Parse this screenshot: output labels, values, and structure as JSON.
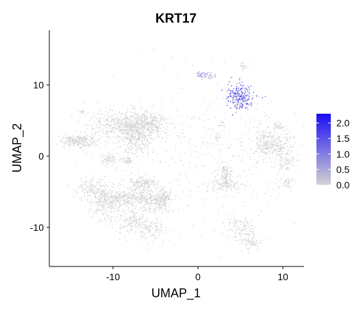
{
  "chart_data": {
    "type": "scatter",
    "title": "KRT17",
    "xlabel": "UMAP_1",
    "ylabel": "UMAP_2",
    "xlim": [
      -17.5,
      12.5
    ],
    "ylim": [
      -15.5,
      17.7
    ],
    "x_ticks": [
      -10,
      0,
      10
    ],
    "x_tick_labels": [
      "-10",
      "0",
      "10"
    ],
    "y_ticks": [
      -10,
      0,
      10
    ],
    "y_tick_labels": [
      "-10",
      "0",
      "10"
    ],
    "grid": false,
    "legend_position": "right",
    "color_scale": {
      "low_color": "#d3d3d3",
      "high_color": "#1a0cf5",
      "min": 0,
      "max": 2.3,
      "breaks": [
        0.0,
        0.5,
        1.0,
        1.5,
        2.0
      ],
      "break_labels": [
        "0.0",
        "0.5",
        "1.0",
        "1.5",
        "2.0"
      ]
    },
    "clusters": [
      {
        "cx": -14.2,
        "cy": 2.1,
        "sx": 1.1,
        "sy": 0.45,
        "n": 260,
        "expr": 0
      },
      {
        "cx": -13.6,
        "cy": 6.3,
        "sx": 0.15,
        "sy": 0.15,
        "n": 12,
        "expr": 0
      },
      {
        "cx": -8.3,
        "cy": 4.3,
        "sx": 2.2,
        "sy": 1.0,
        "n": 650,
        "expr": 0
      },
      {
        "cx": -7.2,
        "cy": 2.4,
        "sx": 1.0,
        "sy": 1.2,
        "n": 300,
        "expr": 0
      },
      {
        "cx": -5.9,
        "cy": 4.8,
        "sx": 0.9,
        "sy": 0.7,
        "n": 200,
        "expr": 0
      },
      {
        "cx": -10.5,
        "cy": -0.4,
        "sx": 0.5,
        "sy": 0.4,
        "n": 70,
        "expr": 0
      },
      {
        "cx": -8.4,
        "cy": -0.6,
        "sx": 0.3,
        "sy": 0.25,
        "n": 25,
        "expr": 0
      },
      {
        "cx": -7.9,
        "cy": -0.8,
        "sx": 0.2,
        "sy": 0.2,
        "n": 15,
        "expr": 0
      },
      {
        "cx": -12.5,
        "cy": -4.5,
        "sx": 1.0,
        "sy": 0.8,
        "n": 180,
        "expr": 0
      },
      {
        "cx": -10.7,
        "cy": -6.6,
        "sx": 1.0,
        "sy": 1.2,
        "n": 260,
        "expr": 0
      },
      {
        "cx": -8.2,
        "cy": -5.8,
        "sx": 1.6,
        "sy": 0.6,
        "n": 300,
        "expr": 0
      },
      {
        "cx": -6.4,
        "cy": -4.0,
        "sx": 1.0,
        "sy": 0.6,
        "n": 200,
        "expr": 0
      },
      {
        "cx": -5.0,
        "cy": -6.5,
        "sx": 0.9,
        "sy": 0.8,
        "n": 200,
        "expr": 0
      },
      {
        "cx": -7.7,
        "cy": -9.3,
        "sx": 0.9,
        "sy": 1.0,
        "n": 160,
        "expr": 0
      },
      {
        "cx": -5.5,
        "cy": -10.3,
        "sx": 0.9,
        "sy": 0.8,
        "n": 120,
        "expr": 0
      },
      {
        "cx": -4.0,
        "cy": -5.8,
        "sx": 0.5,
        "sy": 0.5,
        "n": 90,
        "expr": 0
      },
      {
        "cx": 0.8,
        "cy": 11.4,
        "sx": 0.6,
        "sy": 0.25,
        "n": 70,
        "expr": 0.55
      },
      {
        "cx": 5.2,
        "cy": 12.7,
        "sx": 0.3,
        "sy": 0.5,
        "n": 25,
        "expr": 0
      },
      {
        "cx": 5.0,
        "cy": 8.3,
        "sx": 0.8,
        "sy": 0.9,
        "n": 240,
        "expr": 1.7
      },
      {
        "cx": 2.8,
        "cy": 4.2,
        "sx": 0.2,
        "sy": 0.3,
        "n": 15,
        "expr": 0
      },
      {
        "cx": 2.3,
        "cy": 2.7,
        "sx": 0.25,
        "sy": 0.3,
        "n": 15,
        "expr": 0
      },
      {
        "cx": 9.5,
        "cy": 4.1,
        "sx": 0.4,
        "sy": 0.3,
        "n": 40,
        "expr": 0
      },
      {
        "cx": 7.9,
        "cy": 1.8,
        "sx": 0.6,
        "sy": 1.1,
        "n": 190,
        "expr": 0
      },
      {
        "cx": 9.6,
        "cy": 1.5,
        "sx": 0.8,
        "sy": 0.8,
        "n": 160,
        "expr": 0
      },
      {
        "cx": 10.3,
        "cy": -0.8,
        "sx": 0.6,
        "sy": 0.6,
        "n": 70,
        "expr": 0
      },
      {
        "cx": 10.6,
        "cy": -3.7,
        "sx": 0.4,
        "sy": 0.4,
        "n": 40,
        "expr": 0
      },
      {
        "cx": 3.2,
        "cy": -2.8,
        "sx": 0.4,
        "sy": 1.0,
        "n": 130,
        "expr": 0
      },
      {
        "cx": 3.2,
        "cy": -4.1,
        "sx": 1.1,
        "sy": 0.4,
        "n": 100,
        "expr": 0
      },
      {
        "cx": 5.1,
        "cy": -10.3,
        "sx": 0.9,
        "sy": 0.9,
        "n": 130,
        "expr": 0
      },
      {
        "cx": 6.3,
        "cy": -12.1,
        "sx": 0.6,
        "sy": 0.6,
        "n": 70,
        "expr": 0
      },
      {
        "cx": 1.5,
        "cy": 0.2,
        "sx": 7.5,
        "sy": 5.5,
        "n": 500,
        "expr": 0
      }
    ]
  }
}
